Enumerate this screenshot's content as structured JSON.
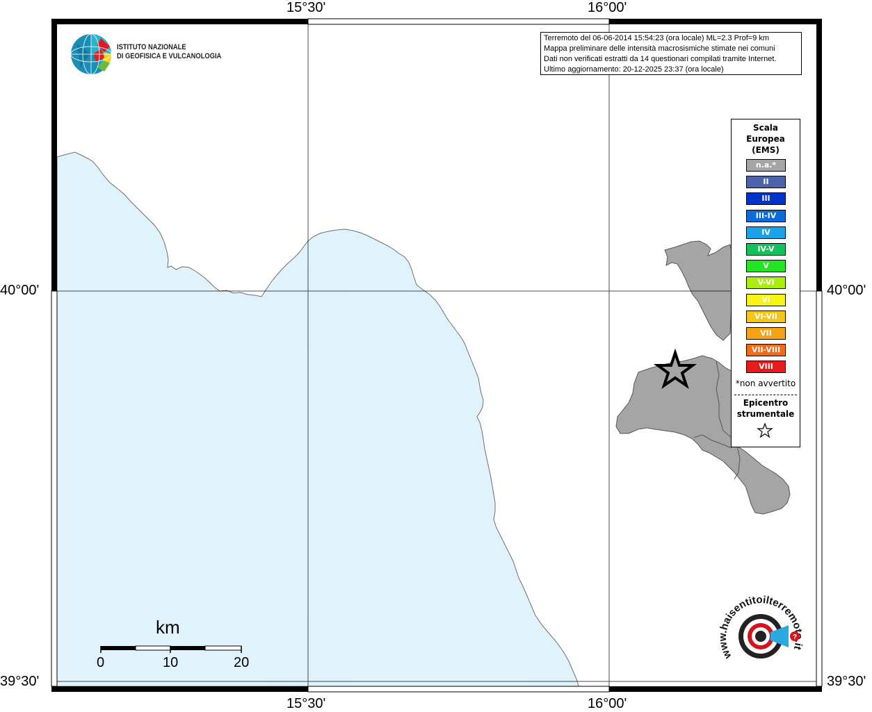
{
  "map": {
    "lat_labels": {
      "top": "40°00'",
      "bottom": "39°30'"
    },
    "lon_labels": {
      "left": "15°30'",
      "right": "16°00'"
    },
    "colors": {
      "sea": "#e0f2fc",
      "land": "#ffffff",
      "region": "#a5a5a5",
      "grid": "#000000"
    }
  },
  "info": {
    "line1": "Terremoto del 06-06-2014 15:54:23 (ora locale) ML=2.3 Prof=9 km",
    "line2": "Mappa preliminare delle intensità macrosismiche stimate nei comuni",
    "line3": "Dati non verificati estratti da 14 questionari compilati tramite Internet.",
    "line4": "Ultimo aggiornamento: 20-12-2025 23:37 (ora locale)"
  },
  "ingv": {
    "line1": "ISTITUTO NAZIONALE",
    "line2": "DI GEOFISICA E VULCANOLOGIA"
  },
  "legend": {
    "title1": "Scala",
    "title2": "Europea",
    "title3": "(EMS)",
    "items": [
      {
        "label": "n.a.*",
        "color": "#a5a5a5"
      },
      {
        "label": "II",
        "color": "#4a63ad"
      },
      {
        "label": "III",
        "color": "#0033cc"
      },
      {
        "label": "III-IV",
        "color": "#0d6bd9"
      },
      {
        "label": "IV",
        "color": "#1aa3e8"
      },
      {
        "label": "IV-V",
        "color": "#14c25c"
      },
      {
        "label": "V",
        "color": "#22e622"
      },
      {
        "label": "V-VI",
        "color": "#aaee11"
      },
      {
        "label": "VI",
        "color": "#f5f511"
      },
      {
        "label": "VI-VII",
        "color": "#f5c518"
      },
      {
        "label": "VII",
        "color": "#f5a313"
      },
      {
        "label": "VII-VIII",
        "color": "#f56a13"
      },
      {
        "label": "VIII",
        "color": "#e81a1a"
      }
    ],
    "note": "*non avvertito",
    "epi1": "Epicentro",
    "epi2": "strumentale"
  },
  "scale": {
    "title": "km",
    "labels": [
      "0",
      "10",
      "20"
    ]
  },
  "hst": {
    "text": "www.haisentitoilterremoto.it"
  }
}
